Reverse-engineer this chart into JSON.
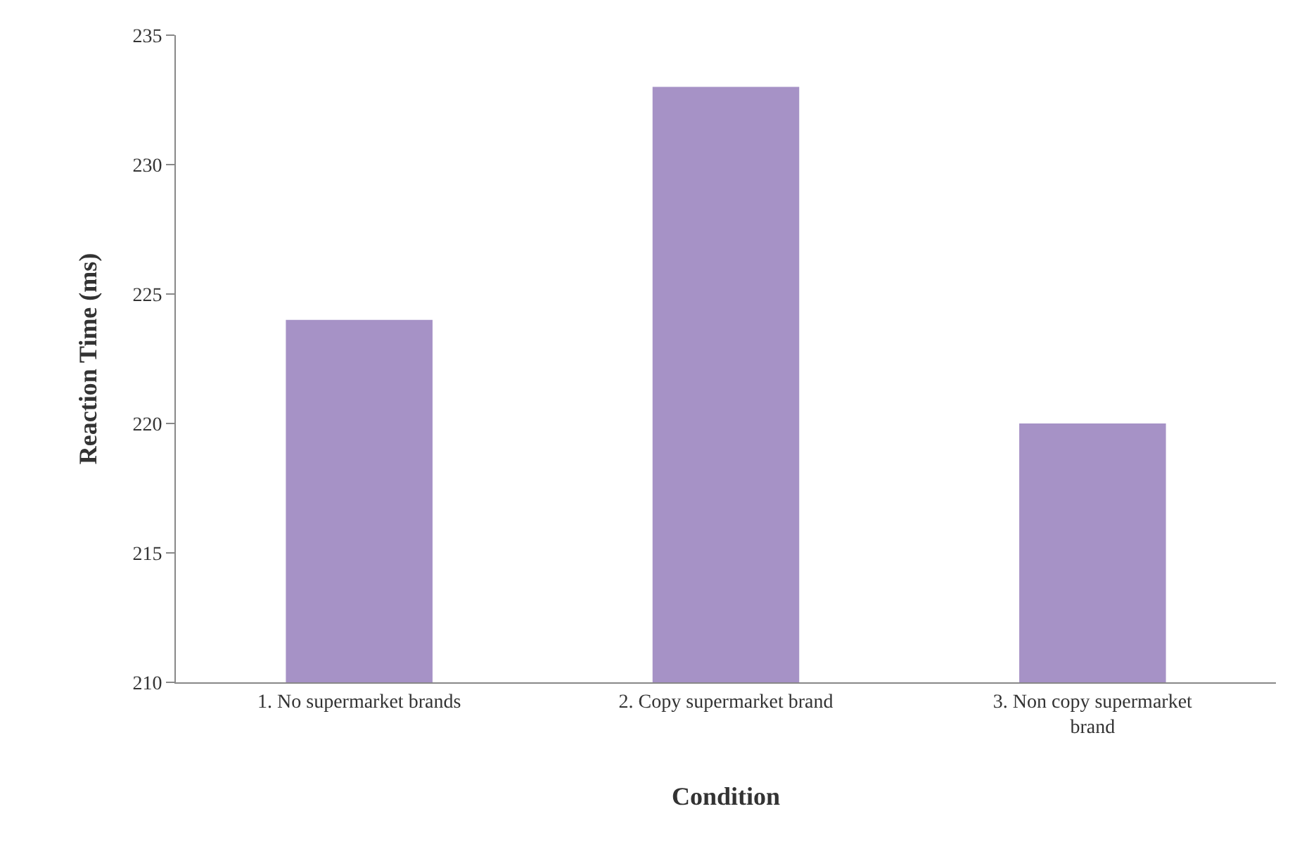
{
  "chart_data": {
    "type": "bar",
    "xlabel": "Condition",
    "ylabel": "Reaction Time (ms)",
    "categories": [
      "1. No supermarket brands",
      "2. Copy supermarket brand",
      "3. Non copy supermarket brand"
    ],
    "values": [
      224,
      233,
      220
    ],
    "color": "#a692c6",
    "ylim": [
      210,
      235
    ],
    "yticks": [
      210,
      215,
      220,
      225,
      230,
      235
    ]
  }
}
